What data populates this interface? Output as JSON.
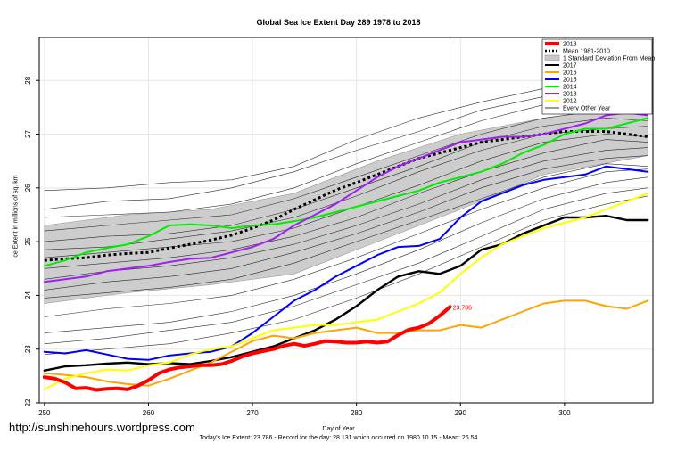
{
  "chart_data": {
    "type": "line",
    "title": "Global Sea Ice Extent Day 289 1978 to 2018",
    "xlabel": "Day of Year",
    "ylabel": "Ice Extent in millions of sq. km",
    "xlim": [
      249.5,
      308.5
    ],
    "ylim": [
      22,
      28.8
    ],
    "x_ticks": [
      250,
      260,
      270,
      280,
      290,
      300
    ],
    "y_ticks": [
      22,
      23,
      24,
      25,
      26,
      27,
      28
    ],
    "y_tick_labels": [
      "22",
      "23",
      "24",
      "25",
      "26",
      "27",
      "28"
    ],
    "grid": true,
    "legend_position": "top-right",
    "current_day": 289,
    "current_value_label": "23.786",
    "legend": [
      {
        "name": "2018",
        "color": "#ff0000",
        "style": "solid-thick"
      },
      {
        "name": "Mean 1981-2010",
        "color": "#000000",
        "style": "dotted"
      },
      {
        "name": "1 Standard Deviation From Mean",
        "color": "#c8c8c8",
        "style": "band"
      },
      {
        "name": "2017",
        "color": "#000000",
        "style": "solid"
      },
      {
        "name": "2016",
        "color": "#ffa500",
        "style": "solid"
      },
      {
        "name": "2015",
        "color": "#0000ff",
        "style": "solid"
      },
      {
        "name": "2014",
        "color": "#00ee00",
        "style": "solid"
      },
      {
        "name": "2013",
        "color": "#a020f0",
        "style": "solid"
      },
      {
        "name": "2012",
        "color": "#ffff00",
        "style": "solid"
      },
      {
        "name": "Every Other Year",
        "color": "#000000",
        "style": "thin"
      }
    ],
    "band": {
      "x": [
        250,
        258,
        266,
        274,
        282,
        290,
        298,
        308
      ],
      "upper": [
        25.3,
        25.5,
        25.6,
        25.9,
        26.5,
        27.0,
        27.3,
        27.55
      ],
      "lower": [
        23.85,
        24.05,
        24.2,
        24.4,
        25.0,
        25.6,
        26.25,
        26.6
      ]
    },
    "mean": {
      "x": [
        250,
        252,
        254,
        256,
        258,
        260,
        262,
        264,
        266,
        268,
        270,
        272,
        274,
        276,
        278,
        280,
        282,
        284,
        286,
        288,
        290,
        292,
        294,
        296,
        298,
        300,
        302,
        304,
        306,
        308
      ],
      "values": [
        24.65,
        24.68,
        24.7,
        24.75,
        24.78,
        24.8,
        24.88,
        24.95,
        25.03,
        25.12,
        25.25,
        25.4,
        25.6,
        25.78,
        25.96,
        26.1,
        26.25,
        26.4,
        26.55,
        26.65,
        26.75,
        26.85,
        26.9,
        26.95,
        27.0,
        27.05,
        27.05,
        27.05,
        27.0,
        26.95
      ]
    },
    "series": [
      {
        "name": "2018",
        "color": "#ff0000",
        "width": 4,
        "x": [
          250,
          251,
          252,
          253,
          254,
          255,
          256,
          257,
          258,
          259,
          260,
          261,
          262,
          263,
          264,
          265,
          266,
          267,
          268,
          269,
          270,
          271,
          272,
          273,
          274,
          275,
          276,
          277,
          278,
          279,
          280,
          281,
          282,
          283,
          284,
          285,
          286,
          287,
          288,
          289
        ],
        "values": [
          22.48,
          22.45,
          22.38,
          22.27,
          22.28,
          22.24,
          22.26,
          22.27,
          22.25,
          22.32,
          22.42,
          22.55,
          22.62,
          22.66,
          22.68,
          22.7,
          22.7,
          22.72,
          22.78,
          22.86,
          22.92,
          22.96,
          23.0,
          23.06,
          23.1,
          23.06,
          23.1,
          23.15,
          23.14,
          23.12,
          23.12,
          23.14,
          23.12,
          23.14,
          23.26,
          23.36,
          23.4,
          23.48,
          23.62,
          23.786
        ]
      },
      {
        "name": "2017",
        "color": "#000000",
        "width": 2.4,
        "x": [
          250,
          252,
          254,
          256,
          258,
          260,
          262,
          264,
          266,
          268,
          270,
          272,
          274,
          276,
          278,
          280,
          282,
          284,
          286,
          288,
          290,
          292,
          294,
          296,
          298,
          300,
          302,
          304,
          306,
          308
        ],
        "values": [
          22.6,
          22.68,
          22.7,
          22.73,
          22.75,
          22.72,
          22.74,
          22.72,
          22.78,
          22.85,
          22.95,
          23.05,
          23.2,
          23.35,
          23.55,
          23.8,
          24.1,
          24.35,
          24.45,
          24.4,
          24.55,
          24.85,
          24.95,
          25.15,
          25.3,
          25.45,
          25.45,
          25.48,
          25.4,
          25.4
        ]
      },
      {
        "name": "2016",
        "color": "#ffa500",
        "width": 2,
        "x": [
          250,
          252,
          254,
          256,
          258,
          260,
          262,
          264,
          266,
          268,
          270,
          272,
          274,
          276,
          278,
          280,
          282,
          284,
          286,
          288,
          290,
          292,
          294,
          296,
          298,
          300,
          302,
          304,
          306,
          308
        ],
        "values": [
          22.55,
          22.52,
          22.48,
          22.4,
          22.35,
          22.32,
          22.45,
          22.6,
          22.75,
          22.95,
          23.15,
          23.25,
          23.2,
          23.3,
          23.35,
          23.4,
          23.3,
          23.3,
          23.35,
          23.35,
          23.45,
          23.4,
          23.55,
          23.7,
          23.85,
          23.9,
          23.9,
          23.8,
          23.75,
          23.9
        ]
      },
      {
        "name": "2015",
        "color": "#0000ff",
        "width": 2,
        "x": [
          250,
          252,
          254,
          256,
          258,
          260,
          262,
          264,
          266,
          268,
          270,
          272,
          274,
          276,
          278,
          280,
          282,
          284,
          286,
          288,
          290,
          292,
          294,
          296,
          298,
          300,
          302,
          304,
          306,
          308
        ],
        "values": [
          22.95,
          22.92,
          22.98,
          22.9,
          22.82,
          22.8,
          22.88,
          22.92,
          22.95,
          23.05,
          23.3,
          23.6,
          23.9,
          24.1,
          24.35,
          24.55,
          24.75,
          24.9,
          24.92,
          25.05,
          25.45,
          25.75,
          25.9,
          26.05,
          26.15,
          26.2,
          26.25,
          26.4,
          26.35,
          26.3
        ]
      },
      {
        "name": "2014",
        "color": "#00ee00",
        "width": 2,
        "x": [
          250,
          252,
          254,
          256,
          258,
          260,
          262,
          264,
          266,
          268,
          270,
          272,
          274,
          276,
          278,
          280,
          282,
          284,
          286,
          288,
          290,
          292,
          294,
          296,
          298,
          300,
          302,
          304,
          306,
          308
        ],
        "values": [
          24.55,
          24.65,
          24.8,
          24.88,
          24.95,
          25.1,
          25.3,
          25.32,
          25.3,
          25.25,
          25.3,
          25.32,
          25.38,
          25.45,
          25.55,
          25.65,
          25.75,
          25.85,
          25.95,
          26.1,
          26.2,
          26.3,
          26.45,
          26.65,
          26.8,
          27.0,
          27.1,
          27.1,
          27.2,
          27.3
        ]
      },
      {
        "name": "2013",
        "color": "#a020f0",
        "width": 2,
        "x": [
          250,
          252,
          254,
          256,
          258,
          260,
          262,
          264,
          266,
          268,
          270,
          272,
          274,
          276,
          278,
          280,
          282,
          284,
          286,
          288,
          290,
          292,
          294,
          296,
          298,
          300,
          302,
          304,
          306,
          308
        ],
        "values": [
          24.25,
          24.3,
          24.35,
          24.45,
          24.5,
          24.55,
          24.62,
          24.68,
          24.7,
          24.8,
          24.9,
          25.05,
          25.3,
          25.5,
          25.7,
          25.95,
          26.2,
          26.4,
          26.55,
          26.7,
          26.85,
          26.9,
          26.95,
          26.95,
          27.0,
          27.1,
          27.2,
          27.35,
          27.4,
          27.35
        ]
      },
      {
        "name": "2012",
        "color": "#ffff00",
        "width": 2,
        "x": [
          250,
          252,
          254,
          256,
          258,
          260,
          262,
          264,
          266,
          268,
          270,
          272,
          274,
          276,
          278,
          280,
          282,
          284,
          286,
          288,
          290,
          292,
          294,
          296,
          298,
          300,
          302,
          304,
          306,
          308
        ],
        "values": [
          22.25,
          22.45,
          22.55,
          22.62,
          22.6,
          22.7,
          22.75,
          22.9,
          23.0,
          23.05,
          23.2,
          23.35,
          23.4,
          23.45,
          23.45,
          23.5,
          23.55,
          23.7,
          23.85,
          24.05,
          24.4,
          24.7,
          24.95,
          25.1,
          25.25,
          25.35,
          25.45,
          25.6,
          25.75,
          25.9
        ]
      }
    ],
    "other_years": [
      {
        "x": [
          250,
          256,
          262,
          268,
          274,
          280,
          286,
          292,
          298,
          304,
          308
        ],
        "values": [
          25.95,
          26.0,
          26.1,
          26.15,
          26.4,
          26.9,
          27.3,
          27.6,
          27.85,
          27.95,
          28.1
        ]
      },
      {
        "x": [
          250,
          256,
          262,
          268,
          274,
          280,
          286,
          292,
          298,
          304,
          308
        ],
        "values": [
          25.6,
          25.75,
          25.8,
          26.0,
          26.3,
          26.7,
          27.05,
          27.45,
          27.7,
          27.75,
          27.85
        ]
      },
      {
        "x": [
          250,
          256,
          262,
          268,
          274,
          280,
          286,
          292,
          298,
          304,
          308
        ],
        "values": [
          25.45,
          25.5,
          25.55,
          25.7,
          26.0,
          26.45,
          26.85,
          27.25,
          27.55,
          27.65,
          27.6
        ]
      },
      {
        "x": [
          250,
          256,
          262,
          268,
          274,
          280,
          286,
          292,
          298,
          304,
          308
        ],
        "values": [
          25.2,
          25.3,
          25.4,
          25.5,
          25.8,
          26.2,
          26.6,
          27.0,
          27.3,
          27.45,
          27.5
        ]
      },
      {
        "x": [
          250,
          256,
          262,
          268,
          274,
          280,
          286,
          292,
          298,
          304,
          308
        ],
        "values": [
          25.0,
          25.1,
          25.15,
          25.3,
          25.6,
          26.0,
          26.4,
          26.85,
          27.15,
          27.3,
          27.25
        ]
      },
      {
        "x": [
          250,
          256,
          262,
          268,
          274,
          280,
          286,
          292,
          298,
          304,
          308
        ],
        "values": [
          24.85,
          24.9,
          25.05,
          25.2,
          25.45,
          25.85,
          26.3,
          26.7,
          27.0,
          27.1,
          27.15
        ]
      },
      {
        "x": [
          250,
          256,
          262,
          268,
          274,
          280,
          286,
          292,
          298,
          304,
          308
        ],
        "values": [
          24.7,
          24.8,
          24.9,
          25.0,
          25.25,
          25.65,
          26.05,
          26.5,
          26.85,
          27.0,
          26.95
        ]
      },
      {
        "x": [
          250,
          256,
          262,
          268,
          274,
          280,
          286,
          292,
          298,
          304,
          308
        ],
        "values": [
          24.5,
          24.6,
          24.7,
          24.85,
          25.1,
          25.45,
          25.9,
          26.3,
          26.65,
          26.9,
          26.85
        ]
      },
      {
        "x": [
          250,
          256,
          262,
          268,
          274,
          280,
          286,
          292,
          298,
          304,
          308
        ],
        "values": [
          24.3,
          24.45,
          24.55,
          24.7,
          24.95,
          25.3,
          25.7,
          26.15,
          26.5,
          26.7,
          26.75
        ]
      },
      {
        "x": [
          250,
          256,
          262,
          268,
          274,
          280,
          286,
          292,
          298,
          304,
          308
        ],
        "values": [
          24.1,
          24.25,
          24.35,
          24.5,
          24.8,
          25.15,
          25.55,
          26.0,
          26.35,
          26.55,
          26.6
        ]
      },
      {
        "x": [
          250,
          256,
          262,
          268,
          274,
          280,
          286,
          292,
          298,
          304,
          308
        ],
        "values": [
          23.95,
          24.05,
          24.15,
          24.3,
          24.6,
          25.0,
          25.4,
          25.8,
          26.2,
          26.45,
          26.4
        ]
      },
      {
        "x": [
          250,
          256,
          262,
          268,
          274,
          280,
          286,
          292,
          298,
          304,
          308
        ],
        "values": [
          23.6,
          23.75,
          23.85,
          24.0,
          24.3,
          24.7,
          25.15,
          25.6,
          26.0,
          26.3,
          26.35
        ]
      },
      {
        "x": [
          250,
          256,
          262,
          268,
          274,
          280,
          286,
          292,
          298,
          304,
          308
        ],
        "values": [
          23.3,
          23.4,
          23.5,
          23.7,
          24.0,
          24.4,
          24.85,
          25.35,
          25.8,
          26.1,
          26.2
        ]
      },
      {
        "x": [
          250,
          256,
          262,
          268,
          274,
          280,
          286,
          292,
          298,
          304,
          308
        ],
        "values": [
          23.1,
          23.2,
          23.35,
          23.5,
          23.8,
          24.2,
          24.6,
          25.1,
          25.6,
          25.9,
          26.0
        ]
      },
      {
        "x": [
          250,
          256,
          262,
          268,
          274,
          280,
          286,
          292,
          298,
          304,
          308
        ],
        "values": [
          22.9,
          23.0,
          23.1,
          23.3,
          23.55,
          23.95,
          24.4,
          24.9,
          25.4,
          25.7,
          25.85
        ]
      }
    ]
  },
  "labels": {
    "title": "Global Sea Ice Extent Day 289 1978 to 2018",
    "xlabel": "Day of Year",
    "ylabel": "Ice Extent in millions of sq. km",
    "caption": "Today's Ice Extent: 23.786  - Record for the day: 28.131 which occurred on 1980 10 15  - Mean: 26.54",
    "watermark": "http://sunshinehours.wordpress.com"
  }
}
